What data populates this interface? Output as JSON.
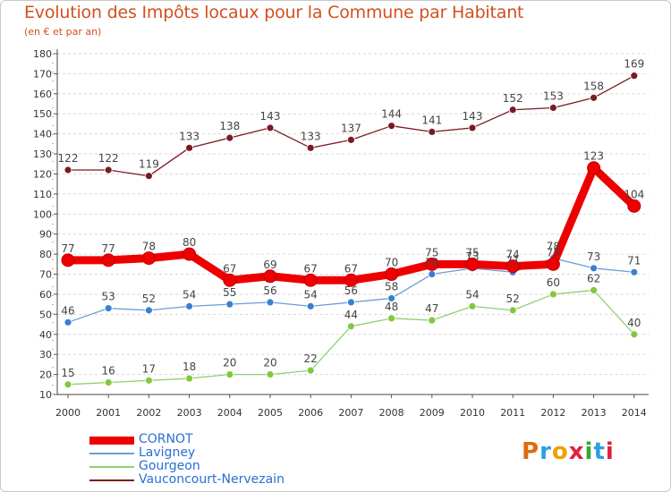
{
  "header": {
    "title": "Evolution des Impôts locaux pour la Commune par Habitant",
    "subtitle": "(en € et par an)"
  },
  "chart_data": {
    "type": "line",
    "title": "Evolution des Impôts locaux pour la Commune par Habitant",
    "subtitle": "(en € et par an)",
    "xlabel": "",
    "ylabel": "",
    "ylim": [
      10,
      180
    ],
    "ytick_step": 10,
    "grid": "horizontal dashed",
    "x": [
      "2000",
      "2001",
      "2002",
      "2003",
      "2004",
      "2005",
      "2006",
      "2007",
      "2008",
      "2009",
      "2010",
      "2011",
      "2012",
      "2013",
      "2014"
    ],
    "series": [
      {
        "name": "Vauconcourt-Nervezain",
        "color": "#7a1a22",
        "width": 1.3,
        "marker": 4,
        "values": [
          122,
          122,
          119,
          133,
          138,
          143,
          133,
          137,
          144,
          141,
          143,
          152,
          153,
          158,
          169
        ]
      },
      {
        "name": "Gourgeon",
        "color": "#90d070",
        "marker_color": "#80c840",
        "width": 1.3,
        "marker": 4,
        "values": [
          15,
          16,
          17,
          18,
          20,
          20,
          22,
          44,
          48,
          47,
          54,
          52,
          60,
          62,
          40
        ]
      },
      {
        "name": "Lavigney",
        "color": "#6a9ed6",
        "marker_color": "#3a80d0",
        "width": 1.3,
        "marker": 4,
        "values": [
          46,
          53,
          52,
          54,
          55,
          56,
          54,
          56,
          58,
          70,
          73,
          71,
          78,
          73,
          71
        ]
      },
      {
        "name": "CORNOT",
        "color": "#ee0000",
        "width": 9,
        "marker": 7,
        "values": [
          77,
          77,
          78,
          80,
          67,
          69,
          67,
          67,
          70,
          75,
          75,
          74,
          75,
          123,
          104
        ]
      }
    ],
    "labels": {
      "CORNOT": [
        "77",
        "77",
        "78",
        "80",
        "67",
        "69",
        "67",
        "67",
        "70",
        "75",
        "75",
        "74",
        "75",
        "123",
        "104"
      ],
      "Lavigney": [
        "46",
        "53",
        "52",
        "54",
        "55",
        "56",
        "54",
        "56",
        "58",
        "70",
        "73",
        "71",
        "78",
        "73",
        "71"
      ],
      "Gourgeon": [
        "15",
        "16",
        "17",
        "18",
        "20",
        "20",
        "22",
        "44",
        "48",
        "47",
        "54",
        "52",
        "60",
        "62",
        "40"
      ],
      "Vauconcourt-Nervezain": [
        "122",
        "122",
        "119",
        "133",
        "138",
        "143",
        "133",
        "137",
        "144",
        "141",
        "143",
        "152",
        "153",
        "158",
        "169"
      ]
    }
  },
  "legend": {
    "items": [
      {
        "label": "CORNOT",
        "color": "#ee0000",
        "thickness": 9
      },
      {
        "label": "Lavigney",
        "color": "#6a9ed6",
        "thickness": 2
      },
      {
        "label": "Gourgeon",
        "color": "#90d070",
        "thickness": 2
      },
      {
        "label": "Vauconcourt-Nervezain",
        "color": "#7a1a22",
        "thickness": 2
      }
    ]
  },
  "branding": {
    "logo": "Proxiti",
    "logo_colors": [
      "#e06a10",
      "#2f9de0",
      "#f0a000",
      "#e02040",
      "#2faa30",
      "#2f9de0",
      "#e02040"
    ]
  }
}
